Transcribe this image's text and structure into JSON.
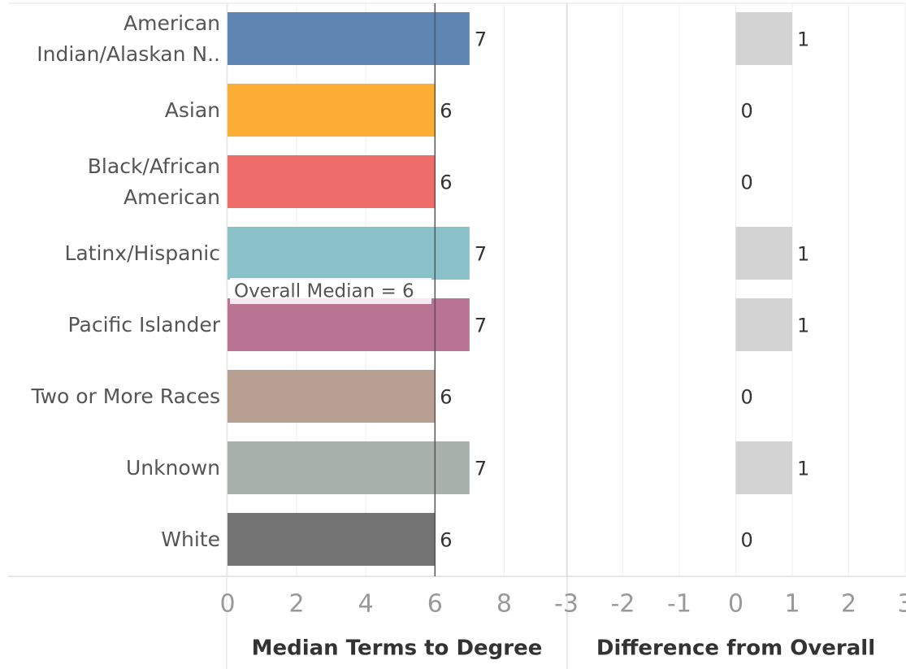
{
  "chart_data": [
    {
      "type": "bar",
      "orientation": "horizontal",
      "categories": [
        "American\nIndian/Alaskan N..",
        "Asian",
        "Black/African\nAmerican",
        "Latinx/Hispanic",
        "Pacific Islander",
        "Two or More Races",
        "Unknown",
        "White"
      ],
      "values": [
        7,
        6,
        6,
        7,
        7,
        6,
        7,
        6
      ],
      "colors": [
        "#5f86b3",
        "#fbad35",
        "#ee6d6a",
        "#8ac0c8",
        "#b87492",
        "#b89f93",
        "#a8b1ab",
        "#747474"
      ],
      "xlabel": "Median Terms to Degree",
      "xlim": [
        0,
        9.8
      ],
      "xticks": [
        0,
        2,
        4,
        6,
        8
      ],
      "grid": true,
      "reference_line": 6,
      "annotation": "Overall Median = 6"
    },
    {
      "type": "bar",
      "orientation": "horizontal",
      "values": [
        1,
        0,
        0,
        1,
        1,
        0,
        1,
        0
      ],
      "color": "#d3d3d3",
      "xlabel": "Difference from Overall",
      "xlim": [
        -3,
        3
      ],
      "xticks": [
        -3,
        -2,
        -1,
        0,
        1,
        2,
        3
      ],
      "grid": true
    }
  ]
}
